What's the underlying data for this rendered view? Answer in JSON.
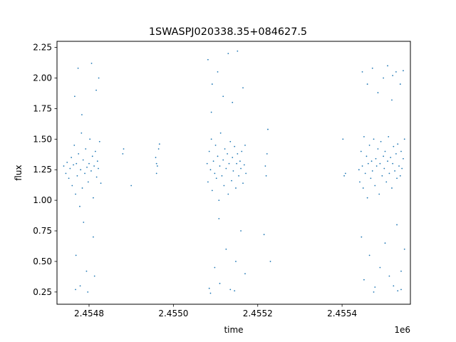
{
  "chart_data": {
    "type": "scatter",
    "title": "1SWASPJ020338.35+084627.5",
    "xlabel": "time",
    "ylabel": "flux",
    "x_offset_label": "1e6",
    "xlim": [
      2454724,
      2455562
    ],
    "ylim": [
      0.15,
      2.3
    ],
    "x_ticks": [
      2454800,
      2455000,
      2455200,
      2455400
    ],
    "x_tick_labels": [
      "2.4548",
      "2.4550",
      "2.4552",
      "2.4554"
    ],
    "y_ticks": [
      0.25,
      0.5,
      0.75,
      1.0,
      1.25,
      1.5,
      1.75,
      2.0,
      2.25
    ],
    "y_tick_labels": [
      "0.25",
      "0.50",
      "0.75",
      "1.00",
      "1.25",
      "1.50",
      "1.75",
      "2.00",
      "2.25"
    ],
    "grid": false,
    "marker_color": "#1f77b4",
    "series": [
      {
        "points": [
          [
            2454740,
            1.28
          ],
          [
            2454745,
            1.22
          ],
          [
            2454748,
            1.31
          ],
          [
            2454752,
            1.18
          ],
          [
            2454755,
            1.26
          ],
          [
            2454758,
            1.35
          ],
          [
            2454760,
            1.12
          ],
          [
            2454763,
            1.29
          ],
          [
            2454765,
            1.45
          ],
          [
            2454768,
            1.05
          ],
          [
            2454770,
            1.3
          ],
          [
            2454772,
            1.2
          ],
          [
            2454775,
            1.38
          ],
          [
            2454778,
            0.95
          ],
          [
            2454780,
            1.25
          ],
          [
            2454782,
            1.55
          ],
          [
            2454784,
            1.1
          ],
          [
            2454786,
            1.33
          ],
          [
            2454790,
            1.22
          ],
          [
            2454792,
            1.42
          ],
          [
            2454795,
            1.27
          ],
          [
            2454798,
            1.15
          ],
          [
            2454800,
            1.3
          ],
          [
            2454802,
            1.5
          ],
          [
            2454805,
            1.24
          ],
          [
            2454808,
            1.36
          ],
          [
            2454810,
            1.02
          ],
          [
            2454812,
            1.28
          ],
          [
            2454815,
            1.4
          ],
          [
            2454818,
            1.19
          ],
          [
            2454820,
            1.32
          ],
          [
            2454822,
            1.26
          ],
          [
            2454825,
            1.48
          ],
          [
            2454828,
            1.14
          ],
          [
            2454766,
            1.85
          ],
          [
            2454769,
            0.55
          ],
          [
            2454774,
            2.08
          ],
          [
            2454779,
            0.3
          ],
          [
            2454783,
            1.7
          ],
          [
            2454794,
            0.42
          ],
          [
            2454797,
            0.25
          ],
          [
            2454806,
            2.12
          ],
          [
            2454813,
            0.38
          ],
          [
            2454817,
            1.9
          ],
          [
            2454823,
            2.0
          ],
          [
            2454810,
            0.7
          ],
          [
            2454787,
            0.82
          ],
          [
            2454768,
            0.27
          ],
          [
            2454880,
            1.38
          ],
          [
            2454882,
            1.42
          ],
          [
            2454900,
            1.12
          ],
          [
            2454958,
            1.35
          ],
          [
            2454960,
            1.3
          ],
          [
            2454962,
            1.28
          ],
          [
            2454965,
            1.42
          ],
          [
            2454967,
            1.46
          ],
          [
            2454960,
            1.22
          ],
          [
            2455080,
            1.3
          ],
          [
            2455082,
            1.15
          ],
          [
            2455085,
            1.4
          ],
          [
            2455088,
            1.25
          ],
          [
            2455090,
            1.5
          ],
          [
            2455092,
            1.08
          ],
          [
            2455095,
            1.32
          ],
          [
            2455098,
            1.22
          ],
          [
            2455100,
            1.45
          ],
          [
            2455102,
            1.18
          ],
          [
            2455105,
            1.36
          ],
          [
            2455108,
            1.0
          ],
          [
            2455110,
            1.28
          ],
          [
            2455112,
            1.55
          ],
          [
            2455115,
            1.2
          ],
          [
            2455118,
            1.33
          ],
          [
            2455120,
            1.12
          ],
          [
            2455122,
            1.42
          ],
          [
            2455125,
            1.26
          ],
          [
            2455128,
            1.38
          ],
          [
            2455130,
            1.05
          ],
          [
            2455132,
            1.3
          ],
          [
            2455135,
            1.48
          ],
          [
            2455138,
            1.16
          ],
          [
            2455140,
            1.35
          ],
          [
            2455142,
            1.24
          ],
          [
            2455145,
            1.44
          ],
          [
            2455148,
            1.1
          ],
          [
            2455150,
            1.3
          ],
          [
            2455152,
            1.38
          ],
          [
            2455155,
            1.2
          ],
          [
            2455158,
            1.32
          ],
          [
            2455160,
            1.26
          ],
          [
            2455162,
            1.4
          ],
          [
            2455165,
            1.14
          ],
          [
            2455168,
            1.29
          ],
          [
            2455170,
            1.45
          ],
          [
            2455172,
            1.22
          ],
          [
            2455082,
            2.15
          ],
          [
            2455085,
            0.28
          ],
          [
            2455092,
            1.95
          ],
          [
            2455098,
            0.45
          ],
          [
            2455105,
            2.05
          ],
          [
            2455110,
            0.32
          ],
          [
            2455118,
            1.85
          ],
          [
            2455125,
            0.6
          ],
          [
            2455130,
            2.2
          ],
          [
            2455135,
            0.27
          ],
          [
            2455140,
            1.8
          ],
          [
            2455148,
            0.5
          ],
          [
            2455152,
            2.22
          ],
          [
            2455160,
            0.75
          ],
          [
            2455165,
            1.92
          ],
          [
            2455170,
            0.4
          ],
          [
            2455088,
            0.24
          ],
          [
            2455145,
            0.26
          ],
          [
            2455090,
            1.72
          ],
          [
            2455108,
            0.85
          ],
          [
            2455215,
            0.72
          ],
          [
            2455218,
            1.28
          ],
          [
            2455220,
            1.2
          ],
          [
            2455222,
            1.38
          ],
          [
            2455224,
            1.58
          ],
          [
            2455230,
            0.5
          ],
          [
            2455402,
            1.5
          ],
          [
            2455405,
            1.2
          ],
          [
            2455408,
            1.22
          ],
          [
            2455440,
            1.25
          ],
          [
            2455442,
            1.15
          ],
          [
            2455445,
            1.4
          ],
          [
            2455448,
            1.28
          ],
          [
            2455450,
            1.1
          ],
          [
            2455452,
            1.52
          ],
          [
            2455455,
            1.22
          ],
          [
            2455458,
            1.36
          ],
          [
            2455460,
            1.02
          ],
          [
            2455462,
            1.3
          ],
          [
            2455465,
            1.45
          ],
          [
            2455468,
            1.18
          ],
          [
            2455470,
            1.32
          ],
          [
            2455472,
            1.24
          ],
          [
            2455475,
            1.5
          ],
          [
            2455478,
            1.12
          ],
          [
            2455480,
            1.34
          ],
          [
            2455482,
            1.28
          ],
          [
            2455485,
            1.42
          ],
          [
            2455488,
            1.05
          ],
          [
            2455490,
            1.3
          ],
          [
            2455492,
            1.48
          ],
          [
            2455495,
            1.2
          ],
          [
            2455498,
            1.36
          ],
          [
            2455500,
            1.26
          ],
          [
            2455502,
            1.4
          ],
          [
            2455505,
            1.15
          ],
          [
            2455508,
            1.32
          ],
          [
            2455510,
            1.52
          ],
          [
            2455512,
            1.22
          ],
          [
            2455515,
            1.35
          ],
          [
            2455518,
            1.1
          ],
          [
            2455520,
            1.3
          ],
          [
            2455522,
            1.44
          ],
          [
            2455525,
            1.24
          ],
          [
            2455528,
            1.38
          ],
          [
            2455530,
            1.18
          ],
          [
            2455532,
            1.46
          ],
          [
            2455535,
            1.28
          ],
          [
            2455538,
            1.2
          ],
          [
            2455540,
            1.4
          ],
          [
            2455542,
            1.26
          ],
          [
            2455545,
            1.34
          ],
          [
            2455548,
            1.5
          ],
          [
            2455448,
            2.05
          ],
          [
            2455452,
            0.35
          ],
          [
            2455460,
            1.95
          ],
          [
            2455465,
            0.55
          ],
          [
            2455472,
            2.08
          ],
          [
            2455478,
            0.29
          ],
          [
            2455485,
            1.88
          ],
          [
            2455490,
            0.45
          ],
          [
            2455498,
            2.0
          ],
          [
            2455502,
            0.65
          ],
          [
            2455508,
            2.1
          ],
          [
            2455512,
            0.38
          ],
          [
            2455518,
            1.82
          ],
          [
            2455522,
            0.3
          ],
          [
            2455528,
            2.05
          ],
          [
            2455532,
            0.26
          ],
          [
            2455538,
            1.95
          ],
          [
            2455540,
            0.42
          ],
          [
            2455545,
            2.06
          ],
          [
            2455548,
            0.6
          ],
          [
            2455446,
            0.7
          ],
          [
            2455530,
            0.8
          ],
          [
            2455520,
            2.02
          ],
          [
            2455475,
            0.25
          ],
          [
            2455540,
            0.27
          ]
        ]
      }
    ]
  }
}
